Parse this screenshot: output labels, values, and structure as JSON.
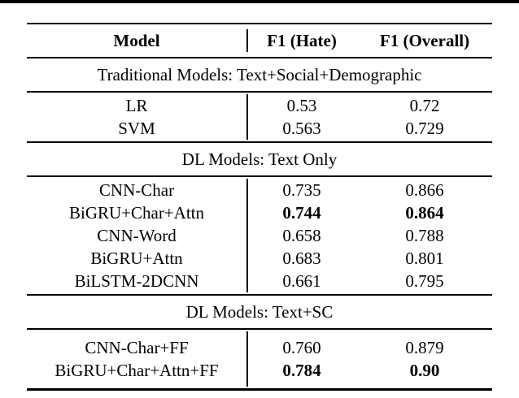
{
  "colors": {
    "text": "#000000",
    "background": "#ffffff",
    "rule": "#000000"
  },
  "table": {
    "columns": [
      "Model",
      "F1 (Hate)",
      "F1 (Overall)"
    ],
    "sections": [
      {
        "header": "Traditional Models: Text+Social+Demographic",
        "rows": [
          {
            "model": "LR",
            "f1_hate": "0.53",
            "f1_overall": "0.72",
            "bold": false
          },
          {
            "model": "SVM",
            "f1_hate": "0.563",
            "f1_overall": "0.729",
            "bold": false
          }
        ]
      },
      {
        "header": "DL Models: Text Only",
        "rows": [
          {
            "model": "CNN-Char",
            "f1_hate": "0.735",
            "f1_overall": "0.866",
            "bold": false
          },
          {
            "model": "BiGRU+Char+Attn",
            "f1_hate": "0.744",
            "f1_overall": "0.864",
            "bold": true
          },
          {
            "model": "CNN-Word",
            "f1_hate": "0.658",
            "f1_overall": "0.788",
            "bold": false
          },
          {
            "model": "BiGRU+Attn",
            "f1_hate": "0.683",
            "f1_overall": "0.801",
            "bold": false
          },
          {
            "model": "BiLSTM-2DCNN",
            "f1_hate": "0.661",
            "f1_overall": "0.795",
            "bold": false
          }
        ]
      },
      {
        "header": "DL Models: Text+SC",
        "rows": [
          {
            "model": "CNN-Char+FF",
            "f1_hate": "0.760",
            "f1_overall": "0.879",
            "bold": false
          },
          {
            "model": "BiGRU+Char+Attn+FF",
            "f1_hate": "0.784",
            "f1_overall": "0.90",
            "bold": true
          }
        ]
      }
    ]
  }
}
